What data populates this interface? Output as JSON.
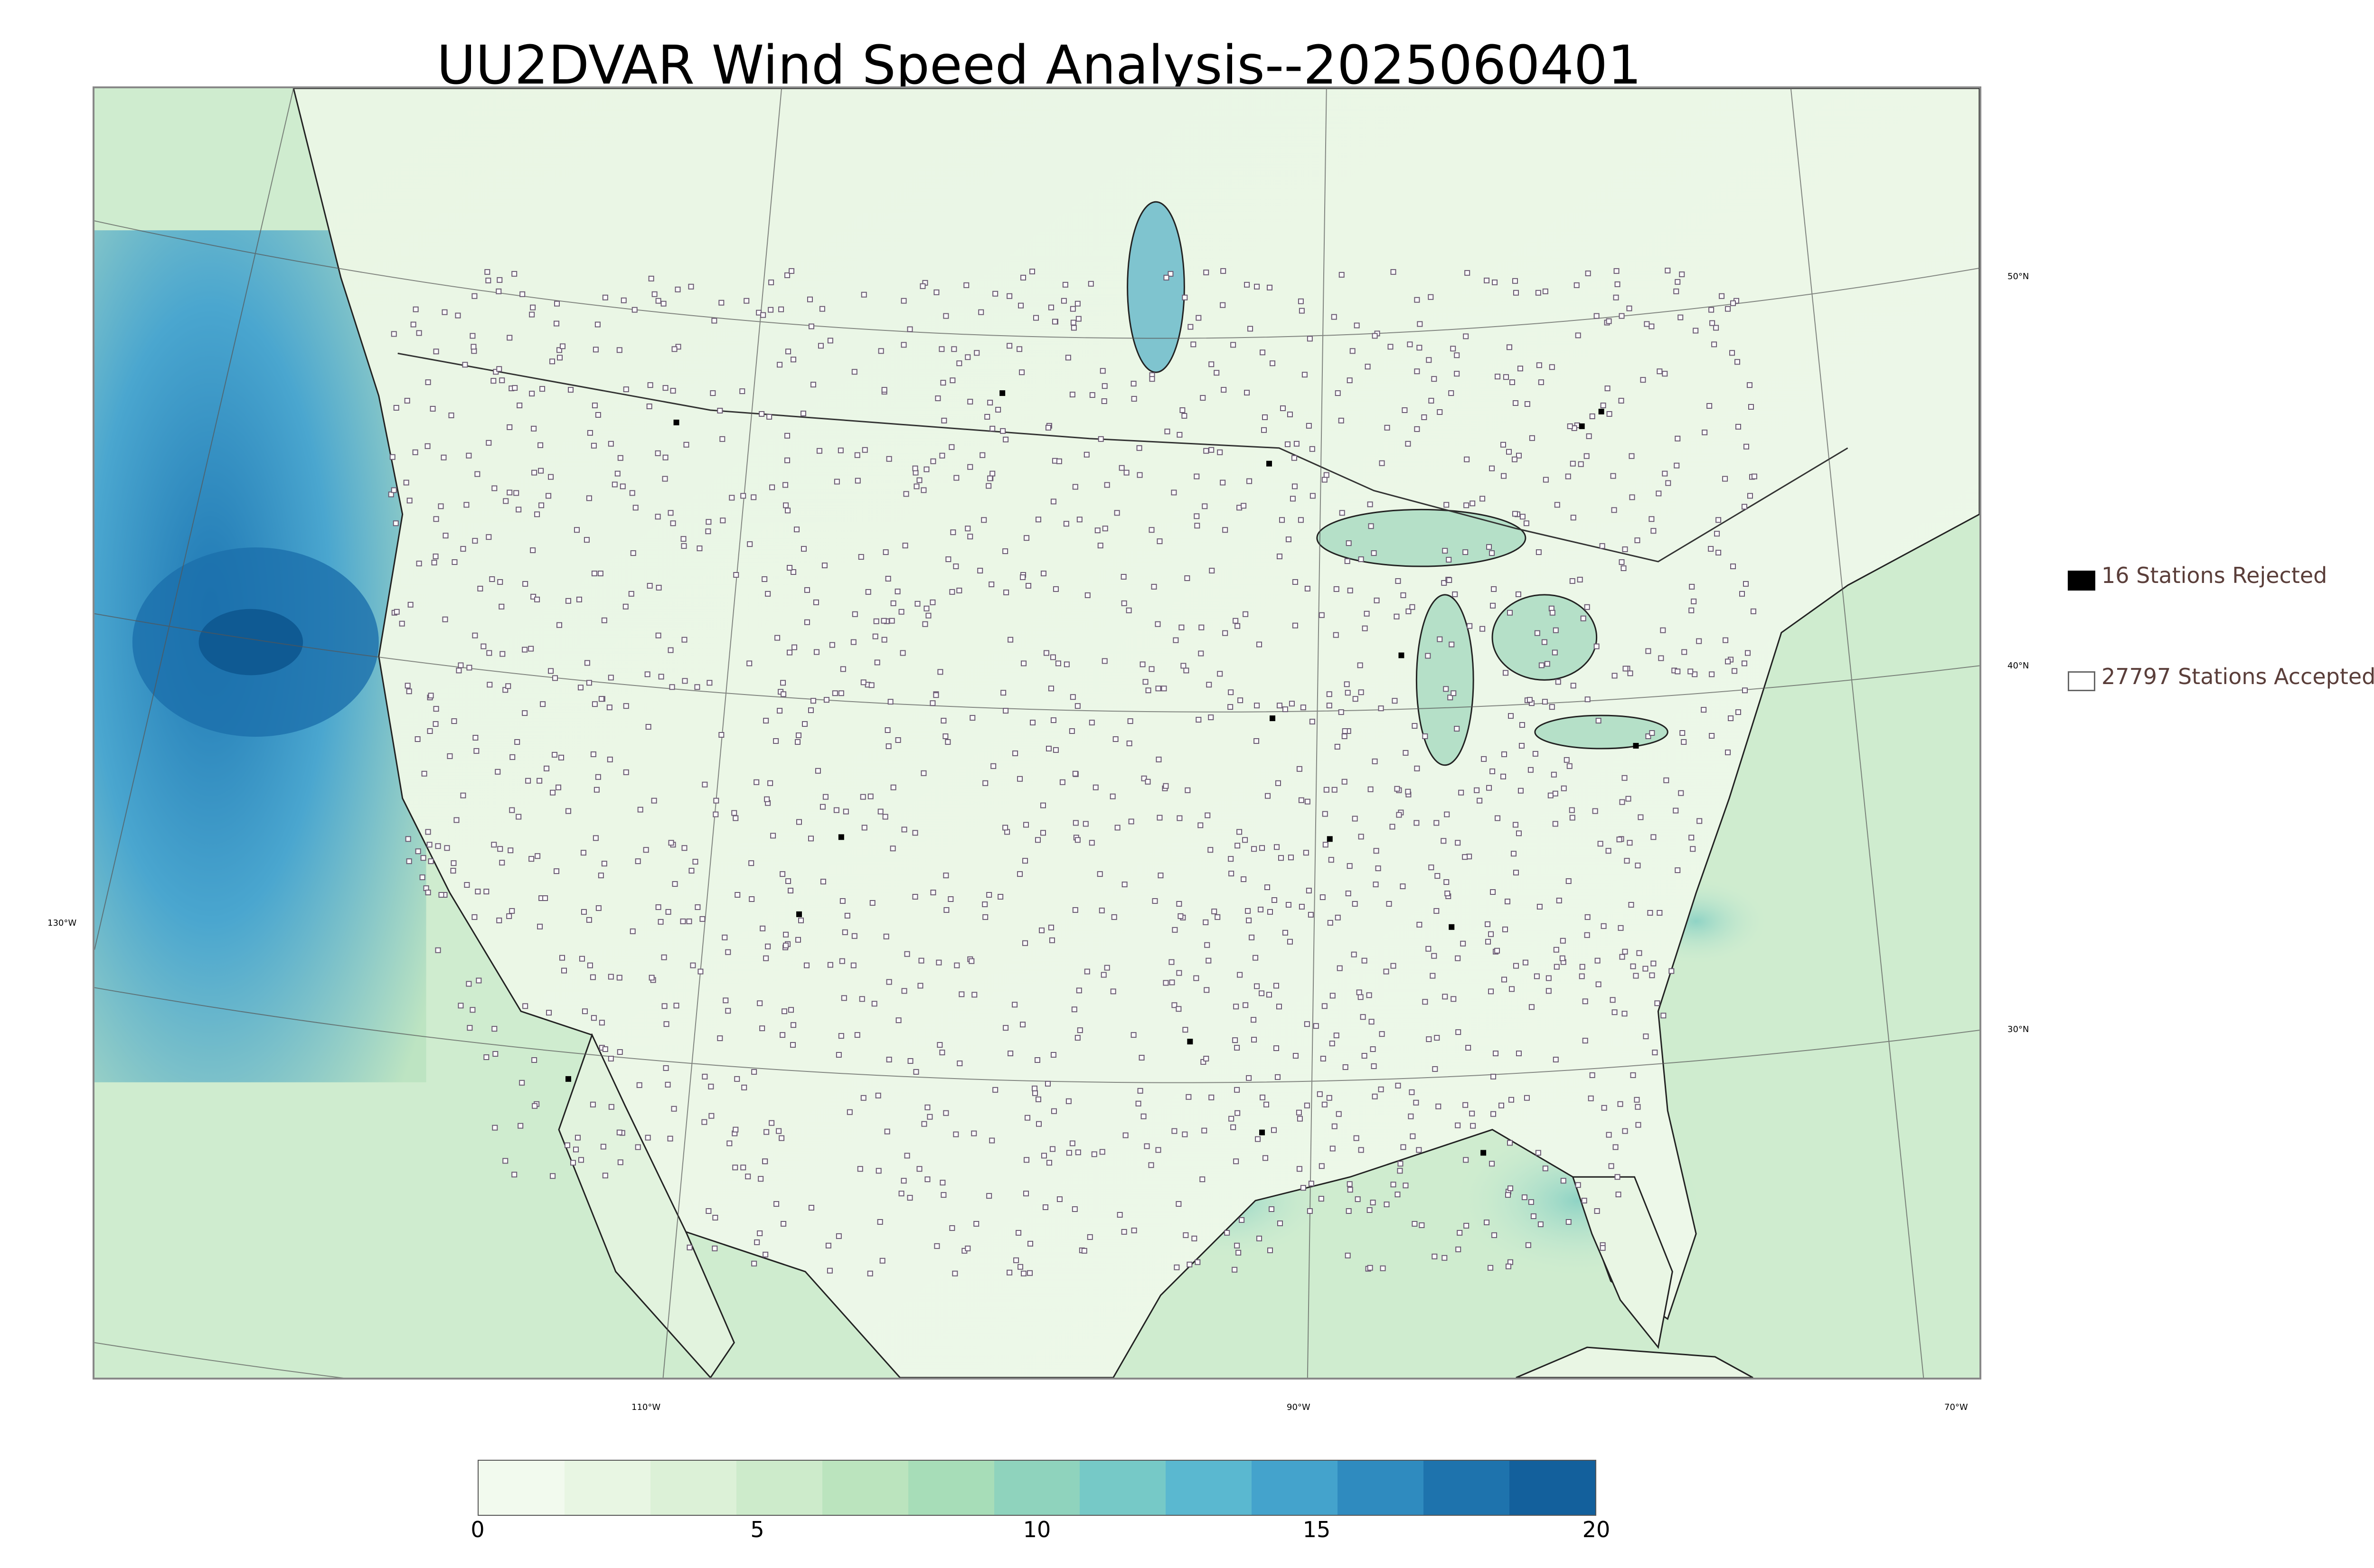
{
  "title": "UU2DVAR Wind Speed Analysis--2025060401",
  "graticule": {
    "lat_labels": [
      "50°N",
      "40°N",
      "30°N"
    ],
    "lon_labels": [
      "130°W",
      "110°W",
      "90°W",
      "70°W"
    ]
  },
  "legend": {
    "rejected": {
      "count": 16,
      "label": "16 Stations Rejected"
    },
    "accepted": {
      "count": 27797,
      "label": "27797 Stations Accepted"
    }
  },
  "colorbar": {
    "min": 0,
    "max": 20,
    "ticks": [
      "0",
      "5",
      "10",
      "15",
      "20"
    ],
    "colors": [
      "#f2faee",
      "#e8f6e3",
      "#dcf1d7",
      "#cdebcb",
      "#bbe4be",
      "#a7ddb8",
      "#8fd3bd",
      "#76c9c7",
      "#5ab8d0",
      "#44a3cc",
      "#2f8bbf",
      "#1e73ad",
      "#13609c"
    ]
  },
  "accent_colors": {
    "land": "#e6f4e0",
    "ocean_high": "#2f8bbf",
    "station_outline": "#6a5a72"
  }
}
